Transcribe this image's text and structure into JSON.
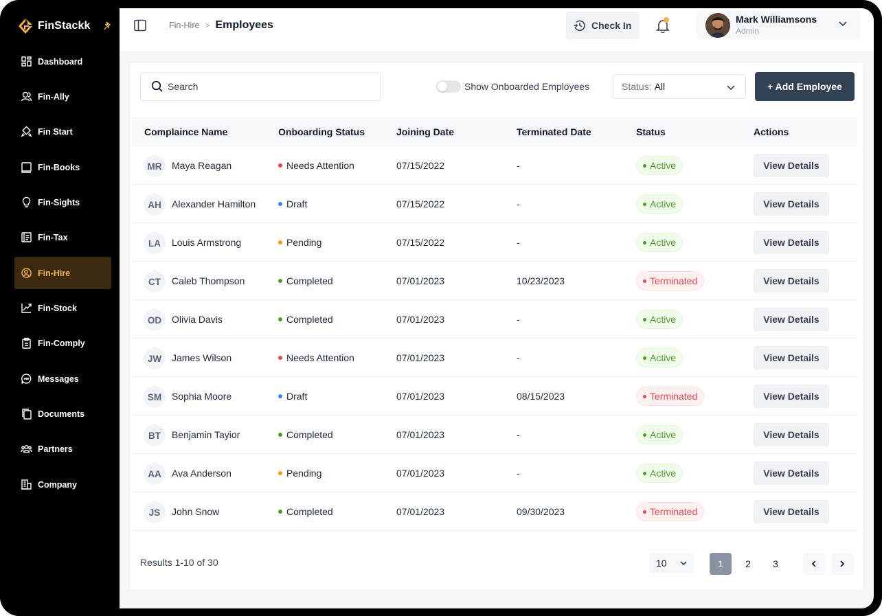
{
  "app": {
    "name": "FinStackk",
    "accent": "#f5b544"
  },
  "sidebar": {
    "items": [
      {
        "label": "Dashboard",
        "icon": "dashboard-icon"
      },
      {
        "label": "Fin-Ally",
        "icon": "users-icon"
      },
      {
        "label": "Fin Start",
        "icon": "rocket-icon"
      },
      {
        "label": "Fin-Books",
        "icon": "book-icon"
      },
      {
        "label": "Fin-Sights",
        "icon": "lightbulb-icon"
      },
      {
        "label": "Fin-Tax",
        "icon": "tax-document-icon"
      },
      {
        "label": "Fin-Hire",
        "icon": "hire-icon",
        "active": true
      },
      {
        "label": "Fin-Stock",
        "icon": "chart-icon"
      },
      {
        "label": "Fin-Comply",
        "icon": "clipboard-icon"
      },
      {
        "label": "Messages",
        "icon": "message-icon"
      },
      {
        "label": "Documents",
        "icon": "documents-icon"
      },
      {
        "label": "Partners",
        "icon": "partners-icon"
      },
      {
        "label": "Company",
        "icon": "building-icon"
      }
    ]
  },
  "header": {
    "breadcrumb_parent": "Fin-Hire",
    "breadcrumb_separator": ">",
    "title": "Employees",
    "checkin_label": "Check In",
    "user": {
      "name": "Mark Williamsons",
      "role": "Admin"
    }
  },
  "toolbar": {
    "search_placeholder": "Search",
    "toggle_label": "Show Onboarded Employees",
    "toggle_on": false,
    "status_label": "Status:",
    "status_value": "All",
    "add_label": "+ Add Employee"
  },
  "table": {
    "columns": [
      "Complaince Name",
      "Onboarding Status",
      "Joining Date",
      "Terminated Date",
      "Status",
      "Actions"
    ],
    "action_label": "View Details",
    "rows": [
      {
        "initials": "MR",
        "name": "Maya Reagan",
        "onboarding": "Needs Attention",
        "dot": "#e5484d",
        "joining": "07/15/2022",
        "terminated": "-",
        "status": "Active"
      },
      {
        "initials": "AH",
        "name": "Alexander Hamilton",
        "onboarding": "Draft",
        "dot": "#3b82f6",
        "joining": "07/15/2022",
        "terminated": "-",
        "status": "Active"
      },
      {
        "initials": "LA",
        "name": "Louis Armstrong",
        "onboarding": "Pending",
        "dot": "#f59e0b",
        "joining": "07/15/2022",
        "terminated": "-",
        "status": "Active"
      },
      {
        "initials": "CT",
        "name": "Caleb Thompson",
        "onboarding": "Completed",
        "dot": "#4f9e2b",
        "joining": "07/01/2023",
        "terminated": "10/23/2023",
        "status": "Terminated"
      },
      {
        "initials": "OD",
        "name": "Olivia Davis",
        "onboarding": "Completed",
        "dot": "#4f9e2b",
        "joining": "07/01/2023",
        "terminated": "-",
        "status": "Active"
      },
      {
        "initials": "JW",
        "name": "James Wilson",
        "onboarding": "Needs Attention",
        "dot": "#e5484d",
        "joining": "07/01/2023",
        "terminated": "-",
        "status": "Active"
      },
      {
        "initials": "SM",
        "name": "Sophia Moore",
        "onboarding": "Draft",
        "dot": "#3b82f6",
        "joining": "07/01/2023",
        "terminated": "08/15/2023",
        "status": "Terminated"
      },
      {
        "initials": "BT",
        "name": "Benjamin Tayior",
        "onboarding": "Completed",
        "dot": "#4f9e2b",
        "joining": "07/01/2023",
        "terminated": "-",
        "status": "Active"
      },
      {
        "initials": "AA",
        "name": "Ava Anderson",
        "onboarding": "Pending",
        "dot": "#f59e0b",
        "joining": "07/01/2023",
        "terminated": "-",
        "status": "Active"
      },
      {
        "initials": "JS",
        "name": "John Snow",
        "onboarding": "Completed",
        "dot": "#4f9e2b",
        "joining": "07/01/2023",
        "terminated": "09/30/2023",
        "status": "Terminated"
      }
    ]
  },
  "pagination": {
    "results_text": "Results 1-10 of 30",
    "per_page": "10",
    "pages": [
      "1",
      "2",
      "3"
    ],
    "current_page": "1"
  }
}
